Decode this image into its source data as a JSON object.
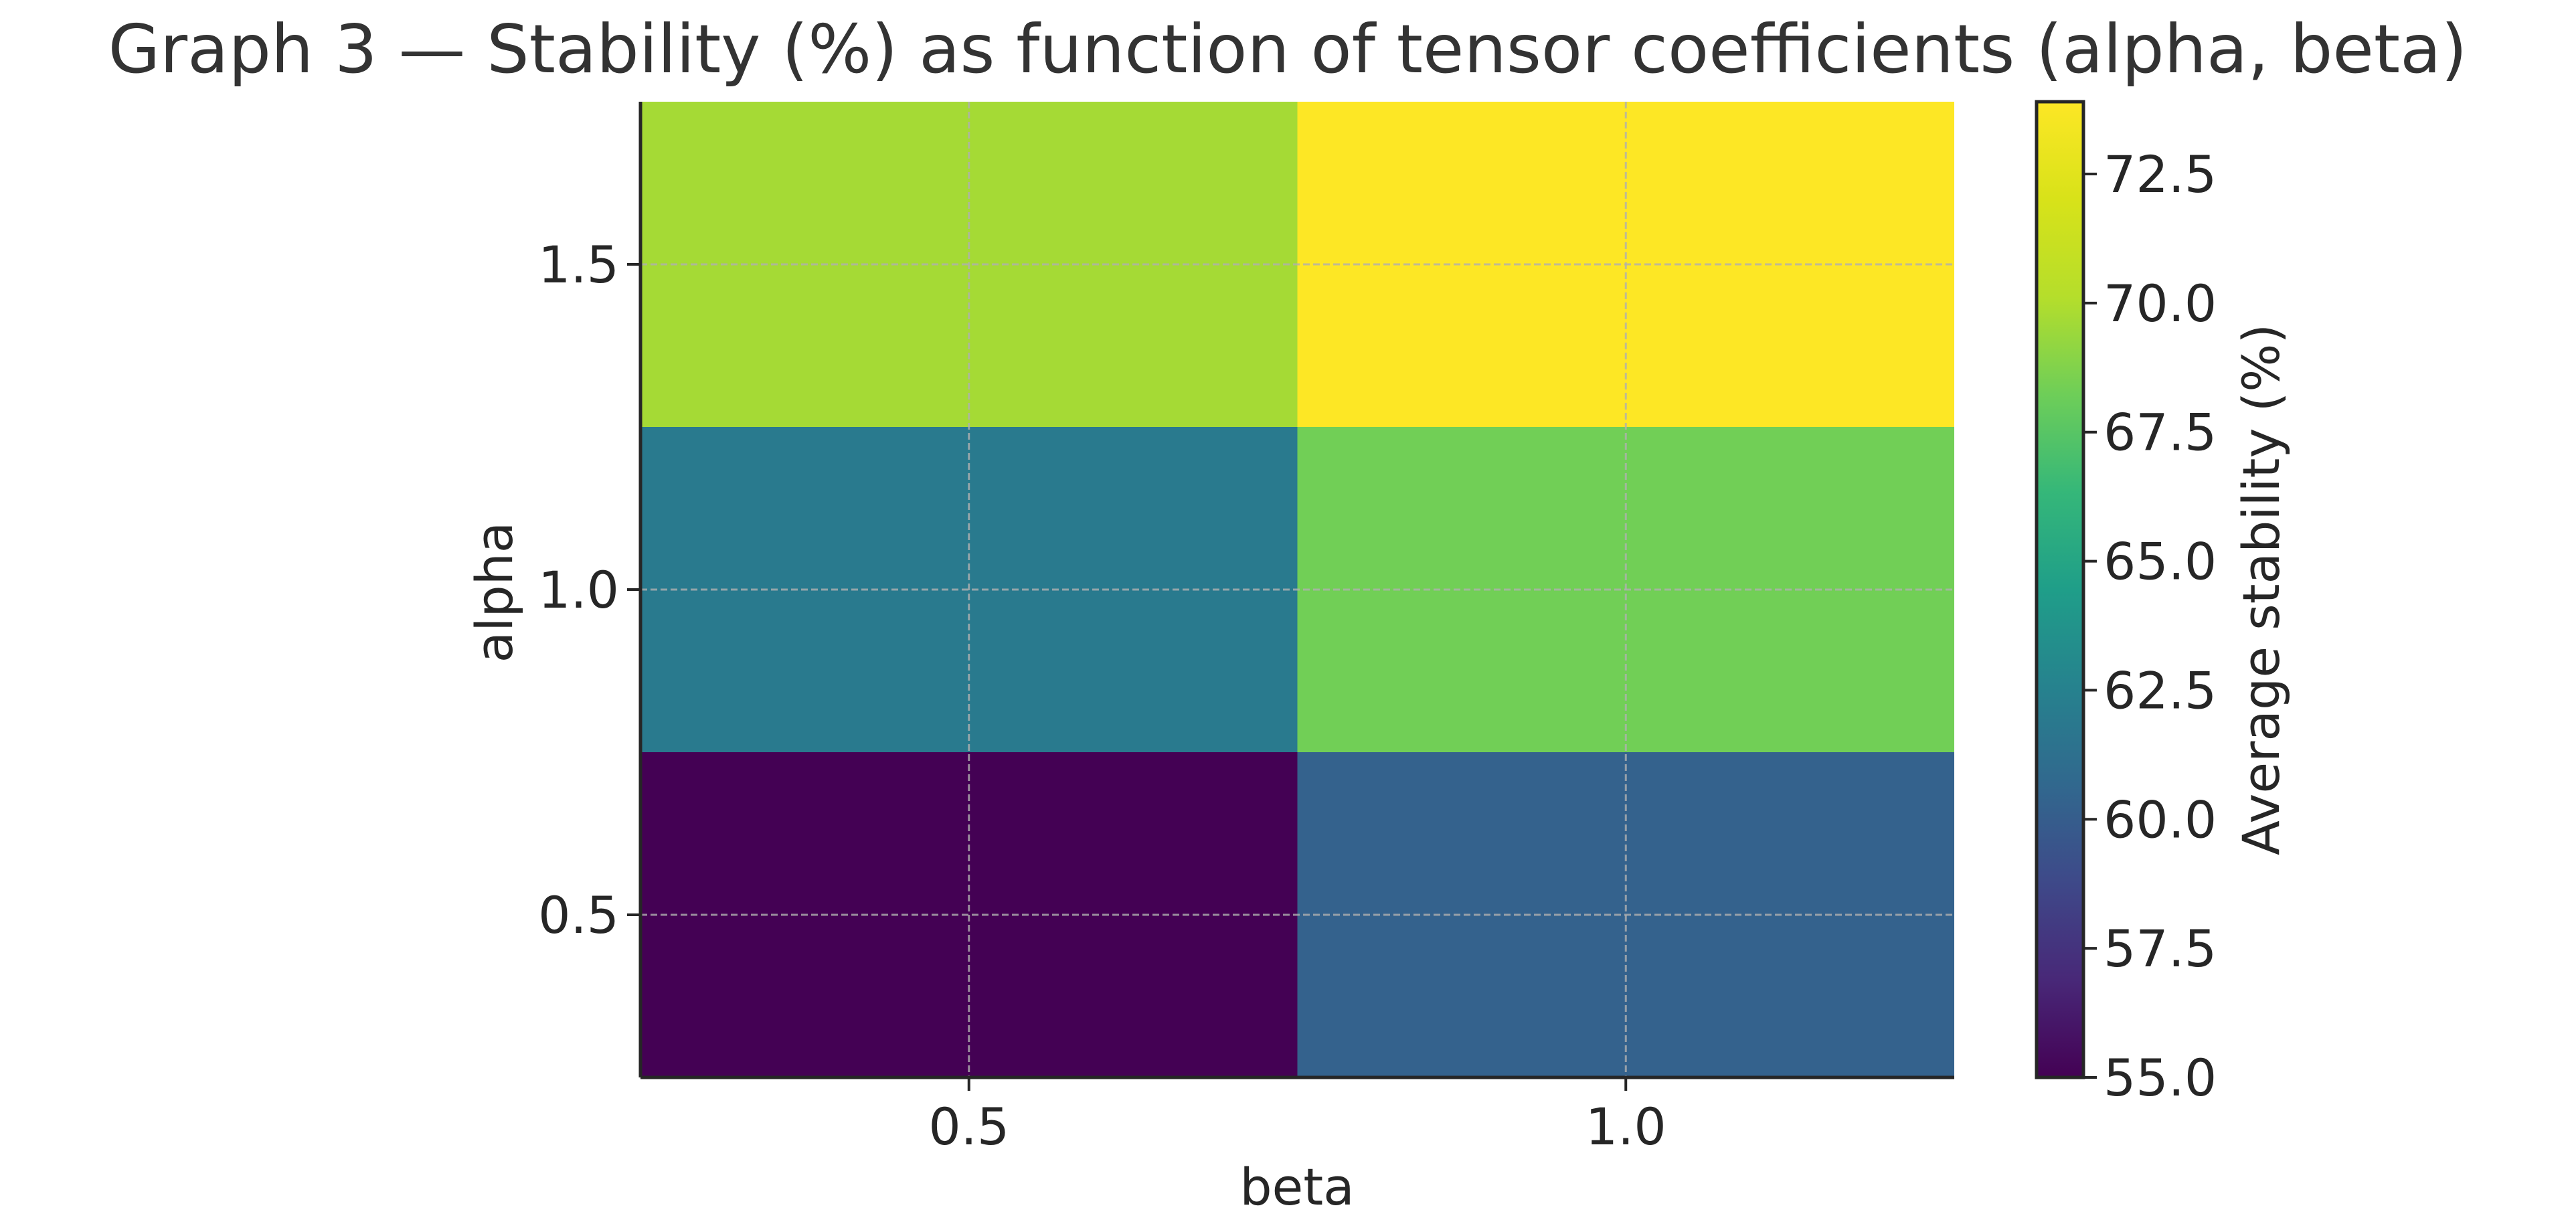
{
  "chart_data": {
    "type": "heatmap",
    "title": "Graph 3 — Stability (%) as function of tensor coefficients (alpha, beta)",
    "xlabel": "beta",
    "ylabel": "alpha",
    "x": [
      0.5,
      1.0
    ],
    "y": [
      0.5,
      1.0,
      1.5
    ],
    "x_tick_labels": [
      "0.5",
      "1.0"
    ],
    "y_tick_labels": [
      "0.5",
      "1.0",
      "1.5"
    ],
    "xlim": [
      0.25,
      1.25
    ],
    "ylim": [
      0.25,
      1.75
    ],
    "values": [
      [
        55.0,
        60.3
      ],
      [
        62.0,
        68.3
      ],
      [
        69.7,
        73.9
      ]
    ],
    "colormap": "viridis",
    "grid": true,
    "colorbar": {
      "label": "Average stability (%)",
      "range": [
        55.0,
        73.9
      ],
      "ticks": [
        55.0,
        57.5,
        60.0,
        62.5,
        65.0,
        67.5,
        70.0,
        72.5
      ],
      "tick_labels": [
        "55.0",
        "57.5",
        "60.0",
        "62.5",
        "65.0",
        "67.5",
        "70.0",
        "72.5"
      ],
      "placement": "right"
    }
  }
}
